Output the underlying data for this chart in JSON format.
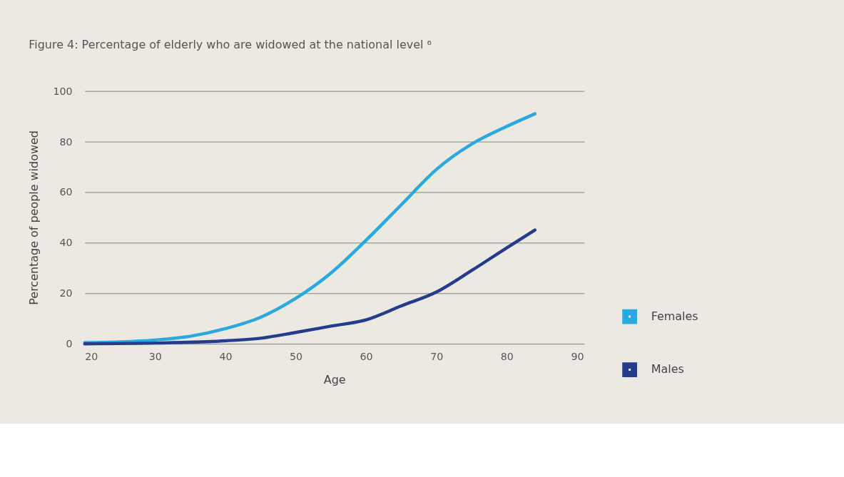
{
  "chart_data": {
    "type": "line",
    "title": "Figure 4: Percentage of elderly who are widowed at the national level ⁶",
    "xlabel": "Age",
    "ylabel": "Percentage of people widowed",
    "xlim": [
      20,
      91
    ],
    "xticks": [
      20,
      30,
      40,
      50,
      60,
      70,
      80,
      90
    ],
    "ylim": [
      0,
      100
    ],
    "yticks": [
      0,
      20,
      40,
      60,
      80,
      100
    ],
    "grid": "y",
    "legend": "bottom right",
    "line_style": "solid",
    "series": [
      {
        "name": "Females",
        "color": "#29a9e0",
        "x": [
          20,
          25,
          30,
          35,
          40,
          45,
          50,
          55,
          60,
          65,
          70,
          75,
          80,
          84
        ],
        "values": [
          0.5,
          0.8,
          1.5,
          3,
          6,
          10.5,
          18,
          28,
          41,
          55,
          69,
          79,
          86,
          91
        ]
      },
      {
        "name": "Males",
        "color": "#253c8c",
        "x": [
          20,
          30,
          40,
          45,
          50,
          55,
          60,
          65,
          70,
          75,
          80,
          84
        ],
        "values": [
          0,
          0.3,
          1.2,
          2.2,
          4.5,
          7,
          9.5,
          15,
          20.5,
          29,
          38,
          45
        ]
      }
    ]
  }
}
